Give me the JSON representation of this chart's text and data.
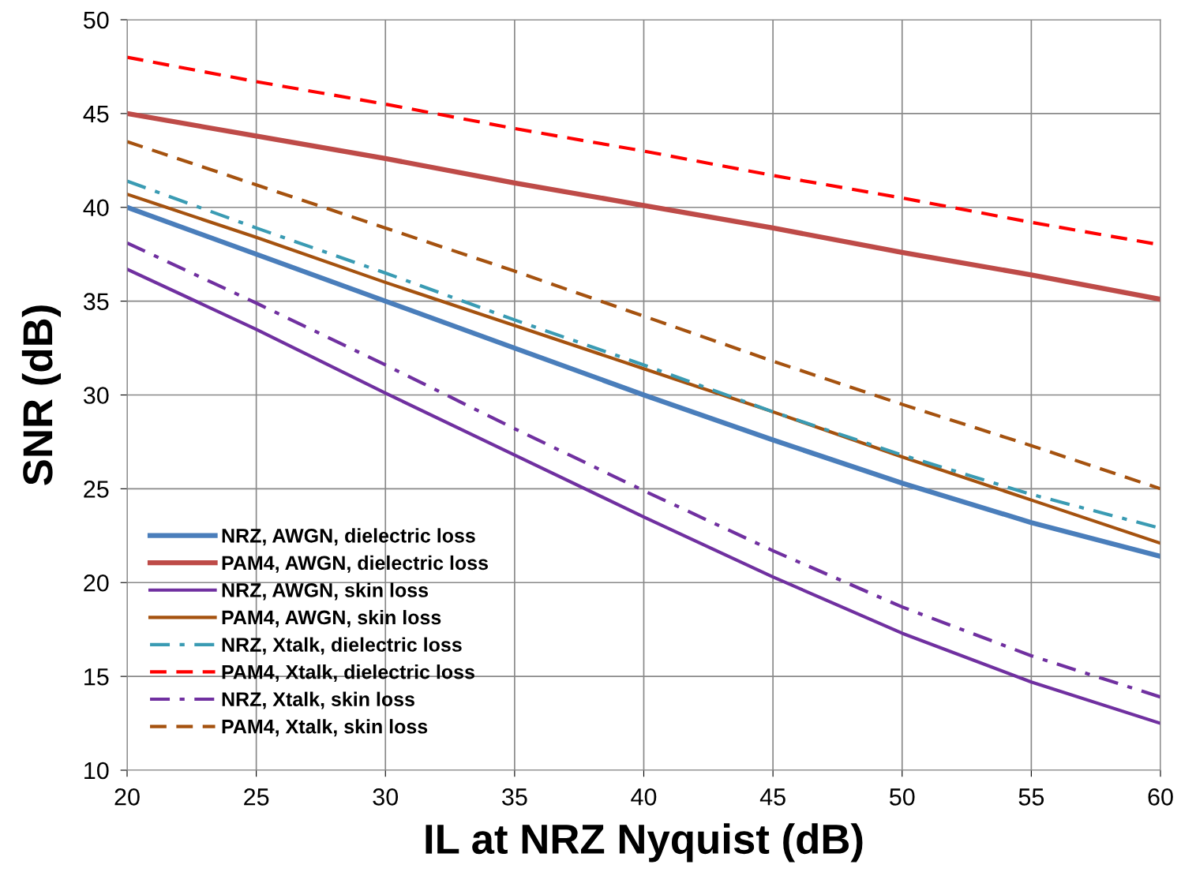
{
  "chart_data": {
    "type": "line",
    "xlabel": "IL at NRZ Nyquist (dB)",
    "ylabel": "SNR (dB)",
    "x": [
      20,
      25,
      30,
      35,
      40,
      45,
      50,
      55,
      60
    ],
    "xlim": [
      20,
      60
    ],
    "xticks": [
      20,
      25,
      30,
      35,
      40,
      45,
      50,
      55,
      60
    ],
    "ylim": [
      10,
      50
    ],
    "yticks": [
      10,
      15,
      20,
      25,
      30,
      35,
      40,
      45,
      50
    ],
    "grid": true,
    "legend": "bottom left",
    "marker": "none",
    "series": [
      {
        "name": "NRZ, AWGN, dielectric loss",
        "color": "#4a7ebb",
        "line_style": "solid",
        "values": [
          40.0,
          37.5,
          35.0,
          32.5,
          30.0,
          27.6,
          25.3,
          23.2,
          21.4
        ]
      },
      {
        "name": "PAM4, AWGN, dielectric loss",
        "color": "#be4b48",
        "line_style": "solid",
        "values": [
          45.0,
          43.8,
          42.6,
          41.3,
          40.1,
          38.9,
          37.6,
          36.4,
          35.1
        ]
      },
      {
        "name": "NRZ, AWGN, skin loss",
        "color": "#7030a0",
        "line_style": "solid",
        "values": [
          36.7,
          33.5,
          30.1,
          26.8,
          23.5,
          20.3,
          17.3,
          14.7,
          12.5
        ]
      },
      {
        "name": "PAM4, AWGN, skin loss",
        "color": "#a5520f",
        "line_style": "solid",
        "values": [
          40.7,
          38.4,
          36.0,
          33.7,
          31.4,
          29.1,
          26.7,
          24.4,
          22.1
        ]
      },
      {
        "name": "NRZ, Xtalk, dielectric loss",
        "color": "#3a9bb3",
        "line_style": "dashdot",
        "values": [
          41.4,
          38.9,
          36.5,
          34.0,
          31.6,
          29.1,
          26.8,
          24.7,
          22.9
        ]
      },
      {
        "name": "PAM4, Xtalk, dielectric loss",
        "color": "#ff0000",
        "line_style": "dashed",
        "values": [
          48.0,
          46.7,
          45.5,
          44.2,
          43.0,
          41.7,
          40.5,
          39.2,
          38.0
        ]
      },
      {
        "name": "NRZ, Xtalk, skin loss",
        "color": "#7030a0",
        "line_style": "dashdot",
        "values": [
          38.1,
          34.9,
          31.6,
          28.2,
          24.9,
          21.7,
          18.7,
          16.1,
          13.9
        ]
      },
      {
        "name": "PAM4, Xtalk, skin loss",
        "color": "#a5520f",
        "line_style": "dashed",
        "values": [
          43.5,
          41.2,
          38.9,
          36.6,
          34.2,
          31.8,
          29.5,
          27.3,
          25.0
        ]
      }
    ]
  }
}
